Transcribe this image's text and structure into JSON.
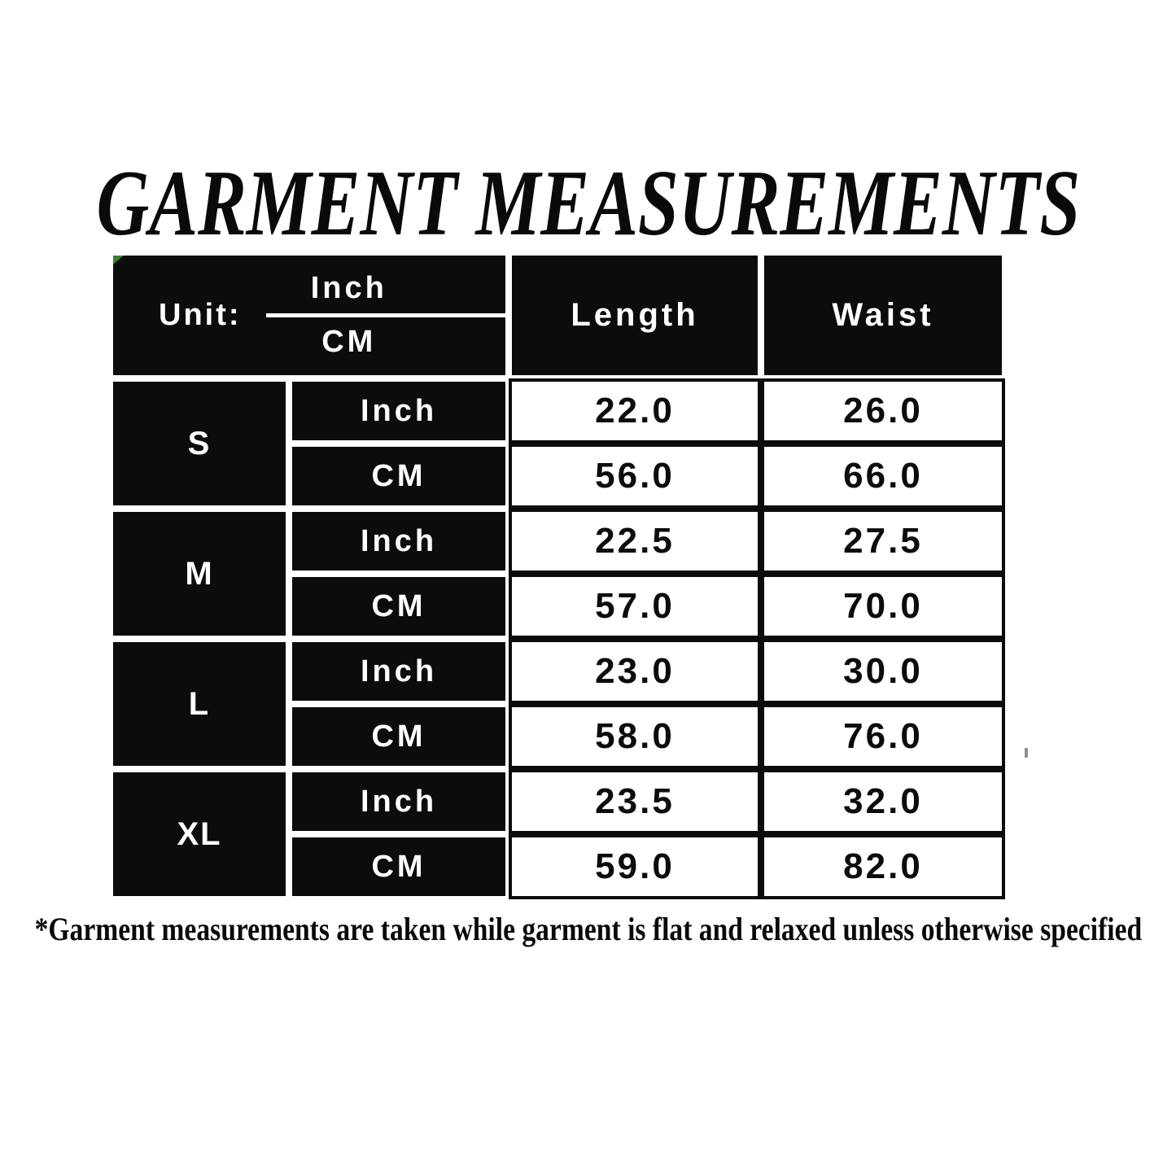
{
  "title": "GARMENT MEASUREMENTS",
  "footnote": "*Garment measurements are taken while garment is flat and relaxed unless otherwise specified",
  "table": {
    "header": {
      "unit_label": "Unit:",
      "unit_top": "Inch",
      "unit_bottom": "CM",
      "columns": [
        "Length",
        "Waist"
      ]
    },
    "sizes": [
      "S",
      "M",
      "L",
      "XL"
    ],
    "rows": [
      {
        "size": "S",
        "unit": "Inch",
        "length": "22.0",
        "waist": "26.0"
      },
      {
        "size": "S",
        "unit": "CM",
        "length": "56.0",
        "waist": "66.0"
      },
      {
        "size": "M",
        "unit": "Inch",
        "length": "22.5",
        "waist": "27.5"
      },
      {
        "size": "M",
        "unit": "CM",
        "length": "57.0",
        "waist": "70.0"
      },
      {
        "size": "L",
        "unit": "Inch",
        "length": "23.0",
        "waist": "30.0"
      },
      {
        "size": "L",
        "unit": "CM",
        "length": "58.0",
        "waist": "76.0"
      },
      {
        "size": "XL",
        "unit": "Inch",
        "length": "23.5",
        "waist": "32.0"
      },
      {
        "size": "XL",
        "unit": "CM",
        "length": "59.0",
        "waist": "82.0"
      }
    ],
    "colors": {
      "cell_background": "#0c0c0c",
      "cell_text_light": "#ffffff",
      "value_text_dark": "#0c0c0c",
      "corner_marker_green": "#3a7d2e"
    }
  },
  "chart_data": {
    "type": "table",
    "title": "GARMENT MEASUREMENTS",
    "columns": [
      "Size",
      "Unit",
      "Length",
      "Waist"
    ],
    "rows": [
      [
        "S",
        "Inch",
        22.0,
        26.0
      ],
      [
        "S",
        "CM",
        56.0,
        66.0
      ],
      [
        "M",
        "Inch",
        22.5,
        27.5
      ],
      [
        "M",
        "CM",
        57.0,
        70.0
      ],
      [
        "L",
        "Inch",
        23.0,
        30.0
      ],
      [
        "L",
        "CM",
        58.0,
        76.0
      ],
      [
        "XL",
        "Inch",
        23.5,
        32.0
      ],
      [
        "XL",
        "CM",
        59.0,
        82.0
      ]
    ],
    "note": "*Garment measurements are taken while garment is flat and relaxed unless otherwise specified"
  }
}
